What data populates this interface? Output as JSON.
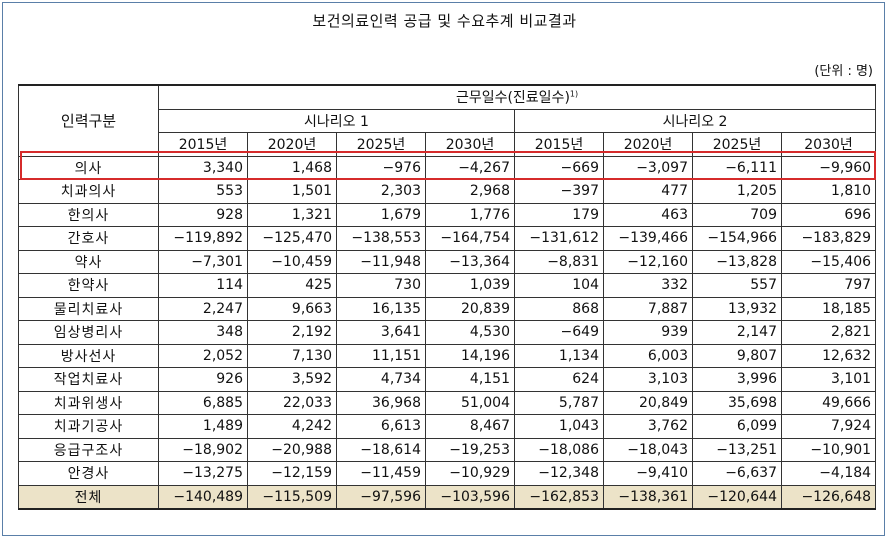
{
  "title": "보건의료인력 공급 및 수요추계 비교결과",
  "unit": "(단위 : 명)",
  "headers": {
    "category": "인력구분",
    "work_days": "근무일수(진료일수)",
    "work_days_note": "1)",
    "scenario1": "시나리오 1",
    "scenario2": "시나리오 2",
    "years": [
      "2015년",
      "2020년",
      "2025년",
      "2030년",
      "2015년",
      "2020년",
      "2025년",
      "2030년"
    ]
  },
  "rows": [
    {
      "category": "의사",
      "values": [
        "3,340",
        "1,468",
        "−976",
        "−4,267",
        "−669",
        "−3,097",
        "−6,111",
        "−9,960"
      ]
    },
    {
      "category": "치과의사",
      "values": [
        "553",
        "1,501",
        "2,303",
        "2,968",
        "−397",
        "477",
        "1,205",
        "1,810"
      ]
    },
    {
      "category": "한의사",
      "values": [
        "928",
        "1,321",
        "1,679",
        "1,776",
        "179",
        "463",
        "709",
        "696"
      ]
    },
    {
      "category": "간호사",
      "values": [
        "−119,892",
        "−125,470",
        "−138,553",
        "−164,754",
        "−131,612",
        "−139,466",
        "−154,966",
        "−183,829"
      ]
    },
    {
      "category": "약사",
      "values": [
        "−7,301",
        "−10,459",
        "−11,948",
        "−13,364",
        "−8,831",
        "−12,160",
        "−13,828",
        "−15,406"
      ]
    },
    {
      "category": "한약사",
      "values": [
        "114",
        "425",
        "730",
        "1,039",
        "104",
        "332",
        "557",
        "797"
      ]
    },
    {
      "category": "물리치료사",
      "values": [
        "2,247",
        "9,663",
        "16,135",
        "20,839",
        "868",
        "7,887",
        "13,932",
        "18,185"
      ]
    },
    {
      "category": "임상병리사",
      "values": [
        "348",
        "2,192",
        "3,641",
        "4,530",
        "−649",
        "939",
        "2,147",
        "2,821"
      ]
    },
    {
      "category": "방사선사",
      "values": [
        "2,052",
        "7,130",
        "11,151",
        "14,196",
        "1,134",
        "6,003",
        "9,807",
        "12,632"
      ]
    },
    {
      "category": "작업치료사",
      "values": [
        "926",
        "3,592",
        "4,734",
        "4,151",
        "624",
        "3,103",
        "3,996",
        "3,101"
      ]
    },
    {
      "category": "치과위생사",
      "values": [
        "6,885",
        "22,033",
        "36,968",
        "51,004",
        "5,787",
        "20,849",
        "35,698",
        "49,666"
      ]
    },
    {
      "category": "치과기공사",
      "values": [
        "1,489",
        "4,242",
        "6,613",
        "8,467",
        "1,043",
        "3,762",
        "6,099",
        "7,924"
      ]
    },
    {
      "category": "응급구조사",
      "values": [
        "−18,902",
        "−20,988",
        "−18,614",
        "−19,253",
        "−18,086",
        "−18,043",
        "−13,251",
        "−10,901"
      ]
    },
    {
      "category": "안경사",
      "values": [
        "−13,275",
        "−12,159",
        "−11,459",
        "−10,929",
        "−12,348",
        "−9,410",
        "−6,637",
        "−4,184"
      ]
    }
  ],
  "total": {
    "category": "전체",
    "values": [
      "−140,489",
      "−115,509",
      "−97,596",
      "−103,596",
      "−162,853",
      "−138,361",
      "−120,644",
      "−126,648"
    ]
  },
  "colors": {
    "highlight": "#d62b2b",
    "total_bg": "#ece3c8",
    "frame": "#5a7fa8"
  }
}
